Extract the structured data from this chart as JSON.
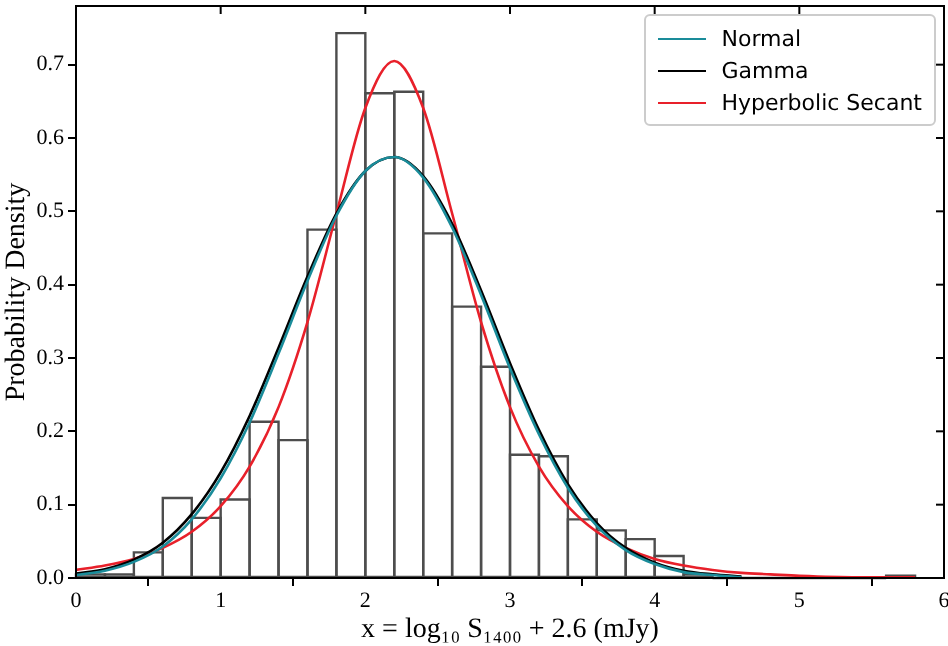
{
  "chart_data": {
    "type": "histogram",
    "xlabel": "x = log₁₀ S₁₄₀₀ + 2.6 (mJy)",
    "ylabel": "Probability Density",
    "bins": [
      0,
      0.2,
      0.4,
      0.6,
      0.8,
      1.0,
      1.2,
      1.4,
      1.6,
      1.8,
      2.0,
      2.2,
      2.4,
      2.6,
      2.8,
      3.0,
      3.2,
      3.4,
      3.6,
      3.8,
      4.0,
      4.2,
      4.4,
      4.6,
      4.8,
      5.0,
      5.2,
      5.4,
      5.6,
      5.8
    ],
    "values": [
      0.005,
      0.005,
      0.035,
      0.109,
      0.082,
      0.107,
      0.213,
      0.188,
      0.475,
      0.743,
      0.661,
      0.663,
      0.47,
      0.37,
      0.288,
      0.168,
      0.166,
      0.08,
      0.065,
      0.053,
      0.03,
      0.005,
      0,
      0,
      0,
      0,
      0,
      0,
      0.003
    ],
    "color": "#ffffff",
    "series": [
      {
        "name": "Normal",
        "type": "line",
        "color": "#1a8c9a",
        "x": [
          0,
          0.2,
          0.4,
          0.6,
          0.8,
          1.0,
          1.2,
          1.4,
          1.6,
          1.8,
          2.0,
          2.2,
          2.4,
          2.6,
          2.8,
          3.0,
          3.2,
          3.4,
          3.6,
          3.8,
          4.0,
          4.2,
          4.4,
          4.6
        ],
        "values": [
          0.004,
          0.01,
          0.022,
          0.043,
          0.08,
          0.136,
          0.212,
          0.306,
          0.405,
          0.494,
          0.555,
          0.574,
          0.546,
          0.478,
          0.386,
          0.286,
          0.196,
          0.123,
          0.071,
          0.038,
          0.019,
          0.008,
          0.004,
          0.001
        ]
      },
      {
        "name": "Gamma",
        "type": "line",
        "color": "#000000",
        "x": [
          0,
          0.2,
          0.4,
          0.6,
          0.8,
          1.0,
          1.2,
          1.4,
          1.6,
          1.8,
          2.0,
          2.2,
          2.4,
          2.6,
          2.8,
          3.0,
          3.2,
          3.4,
          3.6,
          3.8,
          4.0,
          4.2,
          4.4,
          4.6
        ],
        "values": [
          0.006,
          0.012,
          0.025,
          0.048,
          0.087,
          0.144,
          0.221,
          0.314,
          0.411,
          0.497,
          0.555,
          0.574,
          0.548,
          0.483,
          0.392,
          0.293,
          0.202,
          0.128,
          0.075,
          0.041,
          0.021,
          0.01,
          0.005,
          0.002
        ]
      },
      {
        "name": "Hyperbolic Secant",
        "type": "line",
        "color": "#e8202a",
        "x": [
          0,
          0.2,
          0.4,
          0.6,
          0.8,
          1.0,
          1.2,
          1.4,
          1.6,
          1.8,
          2.0,
          2.2,
          2.4,
          2.6,
          2.8,
          3.0,
          3.2,
          3.4,
          3.6,
          3.8,
          4.0,
          4.2,
          4.4,
          4.6,
          4.8,
          5.0,
          5.4,
          5.8
        ],
        "values": [
          0.011,
          0.017,
          0.026,
          0.041,
          0.063,
          0.098,
          0.152,
          0.233,
          0.349,
          0.497,
          0.641,
          0.705,
          0.641,
          0.497,
          0.349,
          0.233,
          0.152,
          0.098,
          0.063,
          0.041,
          0.026,
          0.017,
          0.011,
          0.007,
          0.005,
          0.003,
          0.001,
          0.001
        ]
      }
    ],
    "xlim": [
      0,
      6
    ],
    "xticks": [
      0,
      1,
      2,
      3,
      4,
      5,
      6
    ],
    "ylim": [
      0,
      0.78
    ],
    "yticks": [
      {
        "value": 0,
        "label": "0.0"
      },
      0.1,
      0.2,
      0.3,
      0.4,
      0.5,
      0.6,
      0.7
    ],
    "grid": false,
    "legend": "top right"
  }
}
